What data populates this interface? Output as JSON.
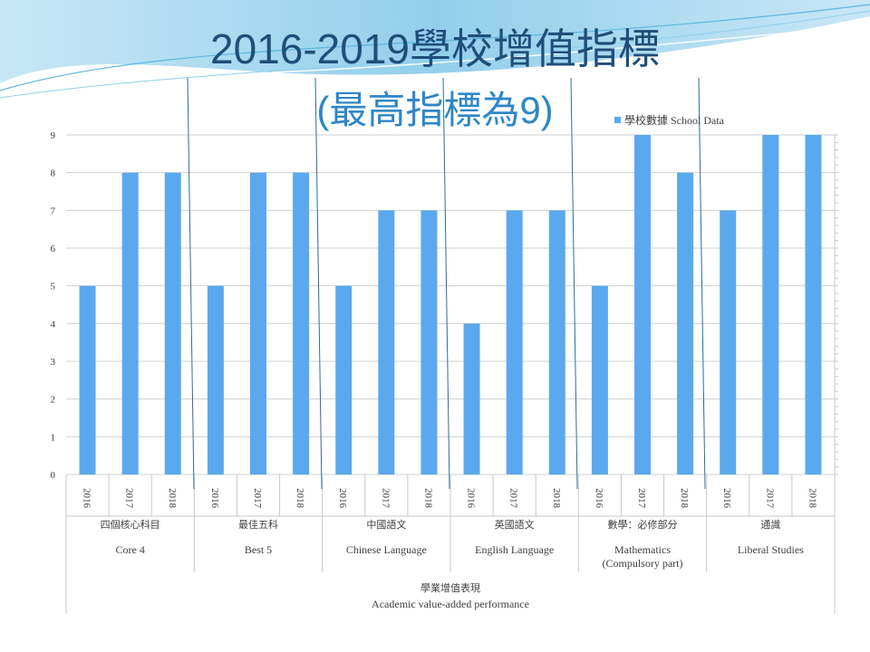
{
  "title_line1": "2016-2019學校增值指標",
  "title_line2": "(最高指標為9)",
  "chart_data": {
    "type": "bar",
    "title": "2016-2019學校增值指標 (最高指標為9)",
    "legend": {
      "position": "top-right"
    },
    "series": [
      {
        "name": "學校數據 School Data",
        "color": "#5aa9ee",
        "values": [
          5,
          8,
          8,
          5,
          8,
          8,
          5,
          7,
          7,
          4,
          7,
          7,
          5,
          9,
          8,
          7,
          9,
          9
        ]
      }
    ],
    "years": [
      "2016",
      "2017",
      "2018"
    ],
    "groups": [
      {
        "zh": "四個核心科目",
        "en": "Core 4"
      },
      {
        "zh": "最佳五科",
        "en": "Best 5"
      },
      {
        "zh": "中國語文",
        "en": "Chinese Language"
      },
      {
        "zh": "英國語文",
        "en": "English Language"
      },
      {
        "zh": "數學：必修部分",
        "en": "Mathematics",
        "en2": "(Compulsory part)"
      },
      {
        "zh": "通識",
        "en": "Liberal Studies"
      }
    ],
    "outer_label": {
      "zh": "學業增值表現",
      "en": "Academic value-added performance"
    },
    "ylim": [
      0,
      9
    ],
    "yticks": [
      "0",
      "1",
      "2",
      "3",
      "4",
      "5",
      "6",
      "7",
      "8",
      "9"
    ],
    "grid": true
  }
}
